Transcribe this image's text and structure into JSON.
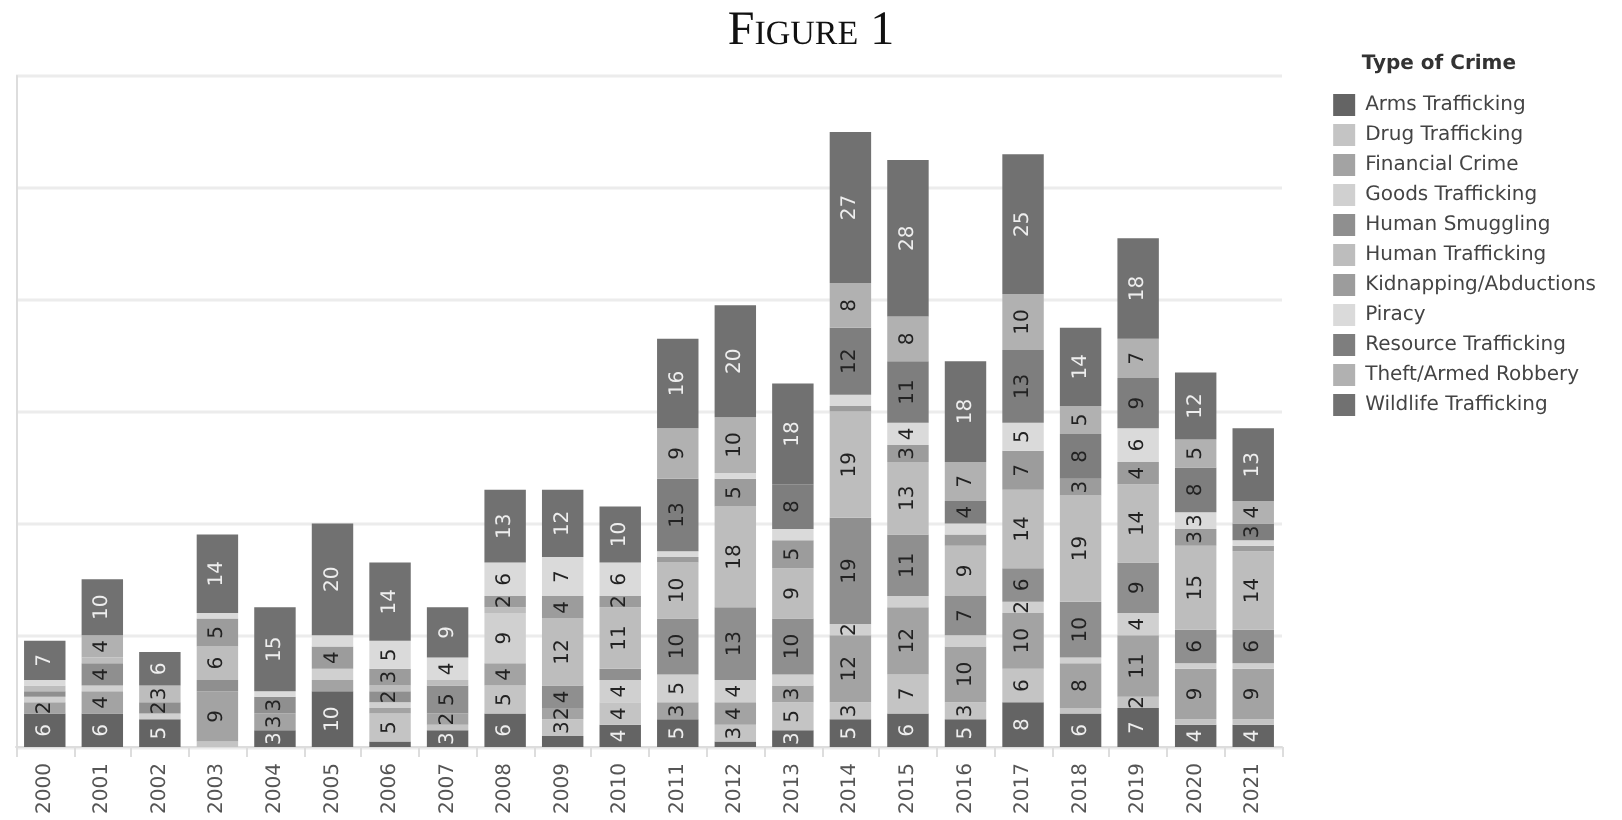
{
  "chart_data": {
    "type": "bar",
    "stacked": true,
    "title": "Figure 1",
    "legend_title": "Type of Crime",
    "legend": "right",
    "grid": "y",
    "tick_labels": "x",
    "categories": [
      "2000",
      "2001",
      "2002",
      "2003",
      "2004",
      "2005",
      "2006",
      "2007",
      "2008",
      "2009",
      "2010",
      "2011",
      "2012",
      "2013",
      "2014",
      "2015",
      "2016",
      "2017",
      "2018",
      "2019",
      "2020",
      "2021"
    ],
    "series": [
      {
        "name": "Arms Trafficking",
        "color": "#646464",
        "values": [
          6,
          6,
          5,
          null,
          3,
          10,
          1,
          3,
          6,
          2,
          4,
          5,
          1,
          3,
          5,
          6,
          5,
          8,
          6,
          7,
          4,
          4
        ],
        "value_labels": [
          "6",
          "6",
          "5",
          null,
          "3",
          "10",
          null,
          "3",
          "6",
          null,
          "4",
          "5",
          null,
          "3",
          "5",
          "6",
          "5",
          "8",
          "6",
          "7",
          "4",
          "4"
        ]
      },
      {
        "name": "Drug Trafficking",
        "color": "#c4c4c4",
        "values": [
          null,
          null,
          null,
          1,
          null,
          null,
          5,
          1,
          5,
          3,
          4,
          null,
          3,
          5,
          3,
          7,
          3,
          6,
          1,
          2,
          1,
          1
        ],
        "value_labels": [
          null,
          null,
          null,
          null,
          null,
          null,
          "5",
          null,
          "5",
          "3",
          "4",
          null,
          "3",
          "5",
          "3",
          "7",
          "3",
          "6",
          null,
          "2",
          null,
          null
        ]
      },
      {
        "name": "Financial Crime",
        "color": "#a3a3a3",
        "values": [
          2,
          4,
          null,
          9,
          3,
          2,
          1,
          2,
          4,
          2,
          null,
          3,
          4,
          3,
          12,
          12,
          10,
          10,
          8,
          11,
          9,
          9
        ],
        "value_labels": [
          "2",
          "4",
          null,
          "9",
          "3",
          null,
          null,
          "2",
          "4",
          "2",
          null,
          "3",
          "4",
          "3",
          "12",
          "12",
          "10",
          "10",
          "8",
          "11",
          "9",
          "9"
        ]
      },
      {
        "name": "Goods Trafficking",
        "color": "#d0d0d0",
        "values": [
          1,
          1,
          1,
          null,
          null,
          2,
          1,
          null,
          9,
          null,
          4,
          5,
          4,
          2,
          2,
          2,
          2,
          2,
          1,
          4,
          1,
          1
        ],
        "value_labels": [
          null,
          null,
          null,
          null,
          null,
          null,
          null,
          null,
          "9",
          null,
          "4",
          "5",
          "4",
          null,
          "2",
          null,
          null,
          "2",
          null,
          "4",
          null,
          null
        ]
      },
      {
        "name": "Human Smuggling",
        "color": "#8f8f8f",
        "values": [
          1,
          4,
          2,
          2,
          3,
          null,
          2,
          5,
          null,
          4,
          2,
          10,
          13,
          10,
          19,
          11,
          7,
          6,
          10,
          9,
          6,
          6
        ],
        "value_labels": [
          null,
          "4",
          "2",
          null,
          "3",
          null,
          "2",
          "5",
          null,
          "4",
          null,
          "10",
          "13",
          "10",
          "19",
          "11",
          "7",
          "6",
          "10",
          "9",
          "6",
          "6"
        ]
      },
      {
        "name": "Human Trafficking",
        "color": "#bdbdbd",
        "values": [
          1,
          1,
          3,
          6,
          null,
          null,
          1,
          1,
          1,
          12,
          11,
          10,
          18,
          9,
          19,
          13,
          9,
          14,
          19,
          14,
          15,
          14
        ],
        "value_labels": [
          null,
          null,
          "3",
          "6",
          null,
          null,
          null,
          null,
          null,
          "12",
          "11",
          "10",
          "18",
          "9",
          "19",
          "13",
          "9",
          "14",
          "19",
          "14",
          "15",
          "14"
        ]
      },
      {
        "name": "Kidnapping/Abductions",
        "color": "#9c9c9c",
        "values": [
          null,
          null,
          null,
          5,
          null,
          4,
          3,
          null,
          2,
          4,
          2,
          1,
          5,
          5,
          1,
          3,
          2,
          7,
          3,
          4,
          3,
          1
        ],
        "value_labels": [
          null,
          null,
          null,
          "5",
          null,
          "4",
          "3",
          null,
          "2",
          "4",
          "2",
          null,
          "5",
          "5",
          null,
          "3",
          null,
          "7",
          "3",
          "4",
          "3",
          null
        ]
      },
      {
        "name": "Piracy",
        "color": "#dadada",
        "values": [
          1,
          null,
          null,
          1,
          1,
          2,
          5,
          4,
          6,
          7,
          6,
          1,
          1,
          2,
          2,
          4,
          2,
          5,
          null,
          6,
          3,
          1
        ],
        "value_labels": [
          null,
          null,
          null,
          null,
          null,
          null,
          "5",
          "4",
          "6",
          "7",
          "6",
          null,
          null,
          null,
          null,
          "4",
          null,
          "5",
          null,
          "6",
          "3",
          null
        ]
      },
      {
        "name": "Resource Trafficking",
        "color": "#7e7e7e",
        "values": [
          null,
          null,
          null,
          null,
          null,
          null,
          null,
          null,
          null,
          null,
          null,
          13,
          null,
          8,
          12,
          11,
          4,
          13,
          8,
          9,
          8,
          3
        ],
        "value_labels": [
          null,
          null,
          null,
          null,
          null,
          null,
          null,
          null,
          null,
          null,
          null,
          "13",
          null,
          "8",
          "12",
          "11",
          "4",
          "13",
          "8",
          "9",
          "8",
          "3"
        ]
      },
      {
        "name": "Theft/Armed Robbery",
        "color": "#b1b1b1",
        "values": [
          null,
          4,
          null,
          null,
          null,
          null,
          null,
          null,
          null,
          null,
          null,
          9,
          10,
          null,
          8,
          8,
          7,
          10,
          5,
          7,
          5,
          4
        ],
        "value_labels": [
          null,
          "4",
          null,
          null,
          null,
          null,
          null,
          null,
          null,
          null,
          null,
          "9",
          "10",
          null,
          "8",
          "8",
          "7",
          "10",
          "5",
          "7",
          "5",
          "4"
        ]
      },
      {
        "name": "Wildlife Trafficking",
        "color": "#717171",
        "values": [
          7,
          10,
          6,
          14,
          15,
          20,
          14,
          9,
          13,
          12,
          10,
          16,
          20,
          18,
          27,
          28,
          18,
          25,
          14,
          18,
          12,
          13
        ],
        "value_labels": [
          "7",
          "10",
          "6",
          "14",
          "15",
          "20",
          "14",
          "9",
          "13",
          "12",
          "10",
          "16",
          "20",
          "18",
          "27",
          "28",
          "18",
          "25",
          "14",
          "18",
          "12",
          "13"
        ]
      }
    ]
  }
}
